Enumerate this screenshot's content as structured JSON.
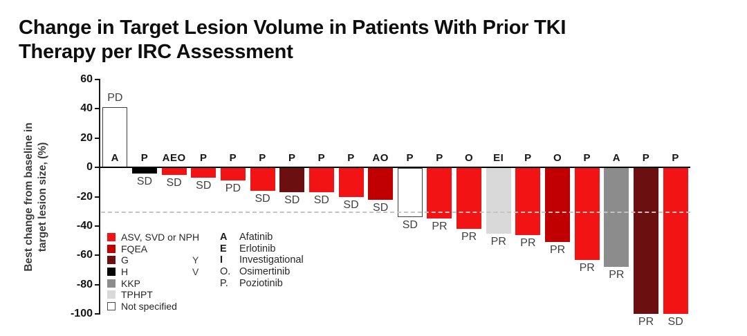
{
  "title": "Change in Target Lesion Volume in Patients With Prior TKI\nTherapy per IRC Assessment",
  "chart_data": {
    "type": "bar",
    "subtype": "waterfall",
    "title": "Change in Target Lesion Volume in Patients With Prior TKI Therapy per IRC Assessment",
    "ylabel": "Best change from baseline in\ntarget lesion size, (%)",
    "ylim": [
      -100,
      60
    ],
    "y_ticks": [
      60,
      40,
      20,
      0,
      -20,
      -40,
      -60,
      -80,
      -100
    ],
    "reference_line_y": -30,
    "grid": false,
    "legend_position": "bottom-left-inside",
    "bars": [
      {
        "drugs": "A",
        "response": "PD",
        "value": 41,
        "group": "not_specified"
      },
      {
        "drugs": "P",
        "response": "SD",
        "value": -4,
        "group": "H"
      },
      {
        "drugs": "AEO",
        "response": "SD",
        "value": -5,
        "group": "ASV"
      },
      {
        "drugs": "P",
        "response": "SD",
        "value": -7,
        "group": "ASV"
      },
      {
        "drugs": "P",
        "response": "PD",
        "value": -9,
        "group": "ASV"
      },
      {
        "drugs": "P",
        "response": "SD",
        "value": -16,
        "group": "ASV"
      },
      {
        "drugs": "P",
        "response": "SD",
        "value": -17,
        "group": "G"
      },
      {
        "drugs": "P",
        "response": "SD",
        "value": -17,
        "group": "ASV"
      },
      {
        "drugs": "P",
        "response": "SD",
        "value": -20,
        "group": "ASV"
      },
      {
        "drugs": "AO",
        "response": "SD",
        "value": -22,
        "group": "FQEA"
      },
      {
        "drugs": "P",
        "response": "SD",
        "value": -34,
        "group": "not_specified"
      },
      {
        "drugs": "P",
        "response": "PR",
        "value": -35,
        "group": "ASV"
      },
      {
        "drugs": "O",
        "response": "PR",
        "value": -42,
        "group": "ASV"
      },
      {
        "drugs": "EI",
        "response": "PR",
        "value": -45,
        "group": "TPHPT"
      },
      {
        "drugs": "P",
        "response": "PR",
        "value": -46,
        "group": "ASV"
      },
      {
        "drugs": "O",
        "response": "PR",
        "value": -51,
        "group": "FQEA"
      },
      {
        "drugs": "P",
        "response": "PR",
        "value": -63,
        "group": "ASV"
      },
      {
        "drugs": "A",
        "response": "PR",
        "value": -68,
        "group": "KKP"
      },
      {
        "drugs": "P",
        "response": "PR",
        "value": -100,
        "group": "G"
      },
      {
        "drugs": "P",
        "response": "SD",
        "value": -100,
        "group": "ASV"
      }
    ],
    "colors": {
      "ASV": "#f21414",
      "FQEA": "#c00000",
      "G": "#6c0f10",
      "H": "#000000",
      "KKP": "#8c8c8c",
      "TPHPT": "#d9d9d9",
      "not_specified": "#ffffff"
    }
  },
  "legend": {
    "color_items": [
      {
        "key": "ASV",
        "label": "ASV, SVD or NPH"
      },
      {
        "key": "FQEA",
        "label": "FQEA"
      },
      {
        "key": "G",
        "label": "G"
      },
      {
        "key": "H",
        "label": "H"
      },
      {
        "key": "KKP",
        "label": "KKP"
      },
      {
        "key": "TPHPT",
        "label": "TPHPT"
      },
      {
        "key": "not_specified",
        "label": "Not specified"
      }
    ],
    "stray_letters": [
      {
        "letter": "Y"
      },
      {
        "letter": "V"
      }
    ],
    "drug_items": [
      {
        "letter": "A",
        "name": "Afatinib",
        "bold": true
      },
      {
        "letter": "E",
        "name": "Erlotinib",
        "bold": true
      },
      {
        "letter": "I",
        "name": "Investigational",
        "bold": true
      },
      {
        "letter": "O.",
        "name": "Osimertinib",
        "bold": false
      },
      {
        "letter": "P.",
        "name": "Poziotinib",
        "bold": false
      }
    ]
  }
}
